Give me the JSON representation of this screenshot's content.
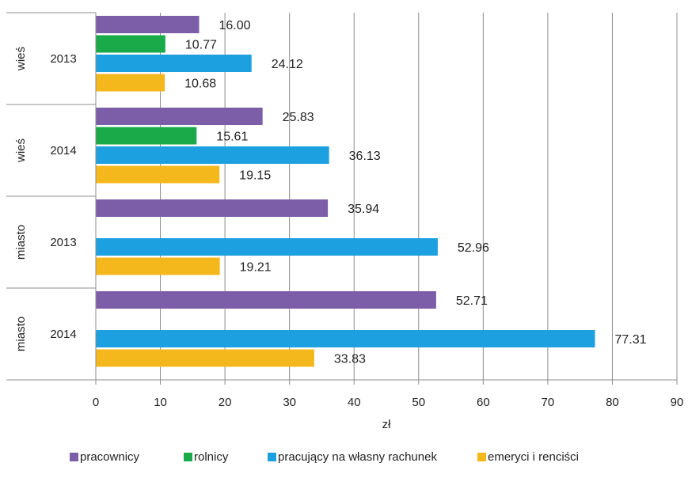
{
  "chart_data": {
    "type": "bar",
    "orientation": "horizontal",
    "categories": [
      {
        "group": "wieś",
        "year": "2013"
      },
      {
        "group": "wieś",
        "year": "2014"
      },
      {
        "group": "miasto",
        "year": "2013"
      },
      {
        "group": "miasto",
        "year": "2014"
      }
    ],
    "series": [
      {
        "name": "pracownicy",
        "color": "#7b5ea7",
        "values": [
          16.0,
          25.83,
          35.94,
          52.71
        ],
        "labels": [
          "16.00",
          "25.83",
          "35.94",
          "52.71"
        ]
      },
      {
        "name": "rolnicy",
        "color": "#1aaa4a",
        "values": [
          10.77,
          15.61,
          null,
          null
        ],
        "labels": [
          "10.77",
          "15.61",
          "",
          ""
        ]
      },
      {
        "name": "pracujący na własny rachunek",
        "color": "#1ca0e0",
        "values": [
          24.12,
          36.13,
          52.96,
          77.31
        ],
        "labels": [
          "24.12",
          "36.13",
          "52.96",
          "77.31"
        ]
      },
      {
        "name": "emeryci i renciści",
        "color": "#f5b81c",
        "values": [
          10.68,
          19.15,
          19.21,
          33.83
        ],
        "labels": [
          "10.68",
          "19.15",
          "19.21",
          "33.83"
        ]
      }
    ],
    "xlabel": "zł",
    "xlim": [
      0,
      90
    ],
    "xticks": [
      "0",
      "10",
      "20",
      "30",
      "40",
      "50",
      "60",
      "70",
      "80",
      "90"
    ],
    "grid": "vertical",
    "legend_position": "bottom"
  }
}
